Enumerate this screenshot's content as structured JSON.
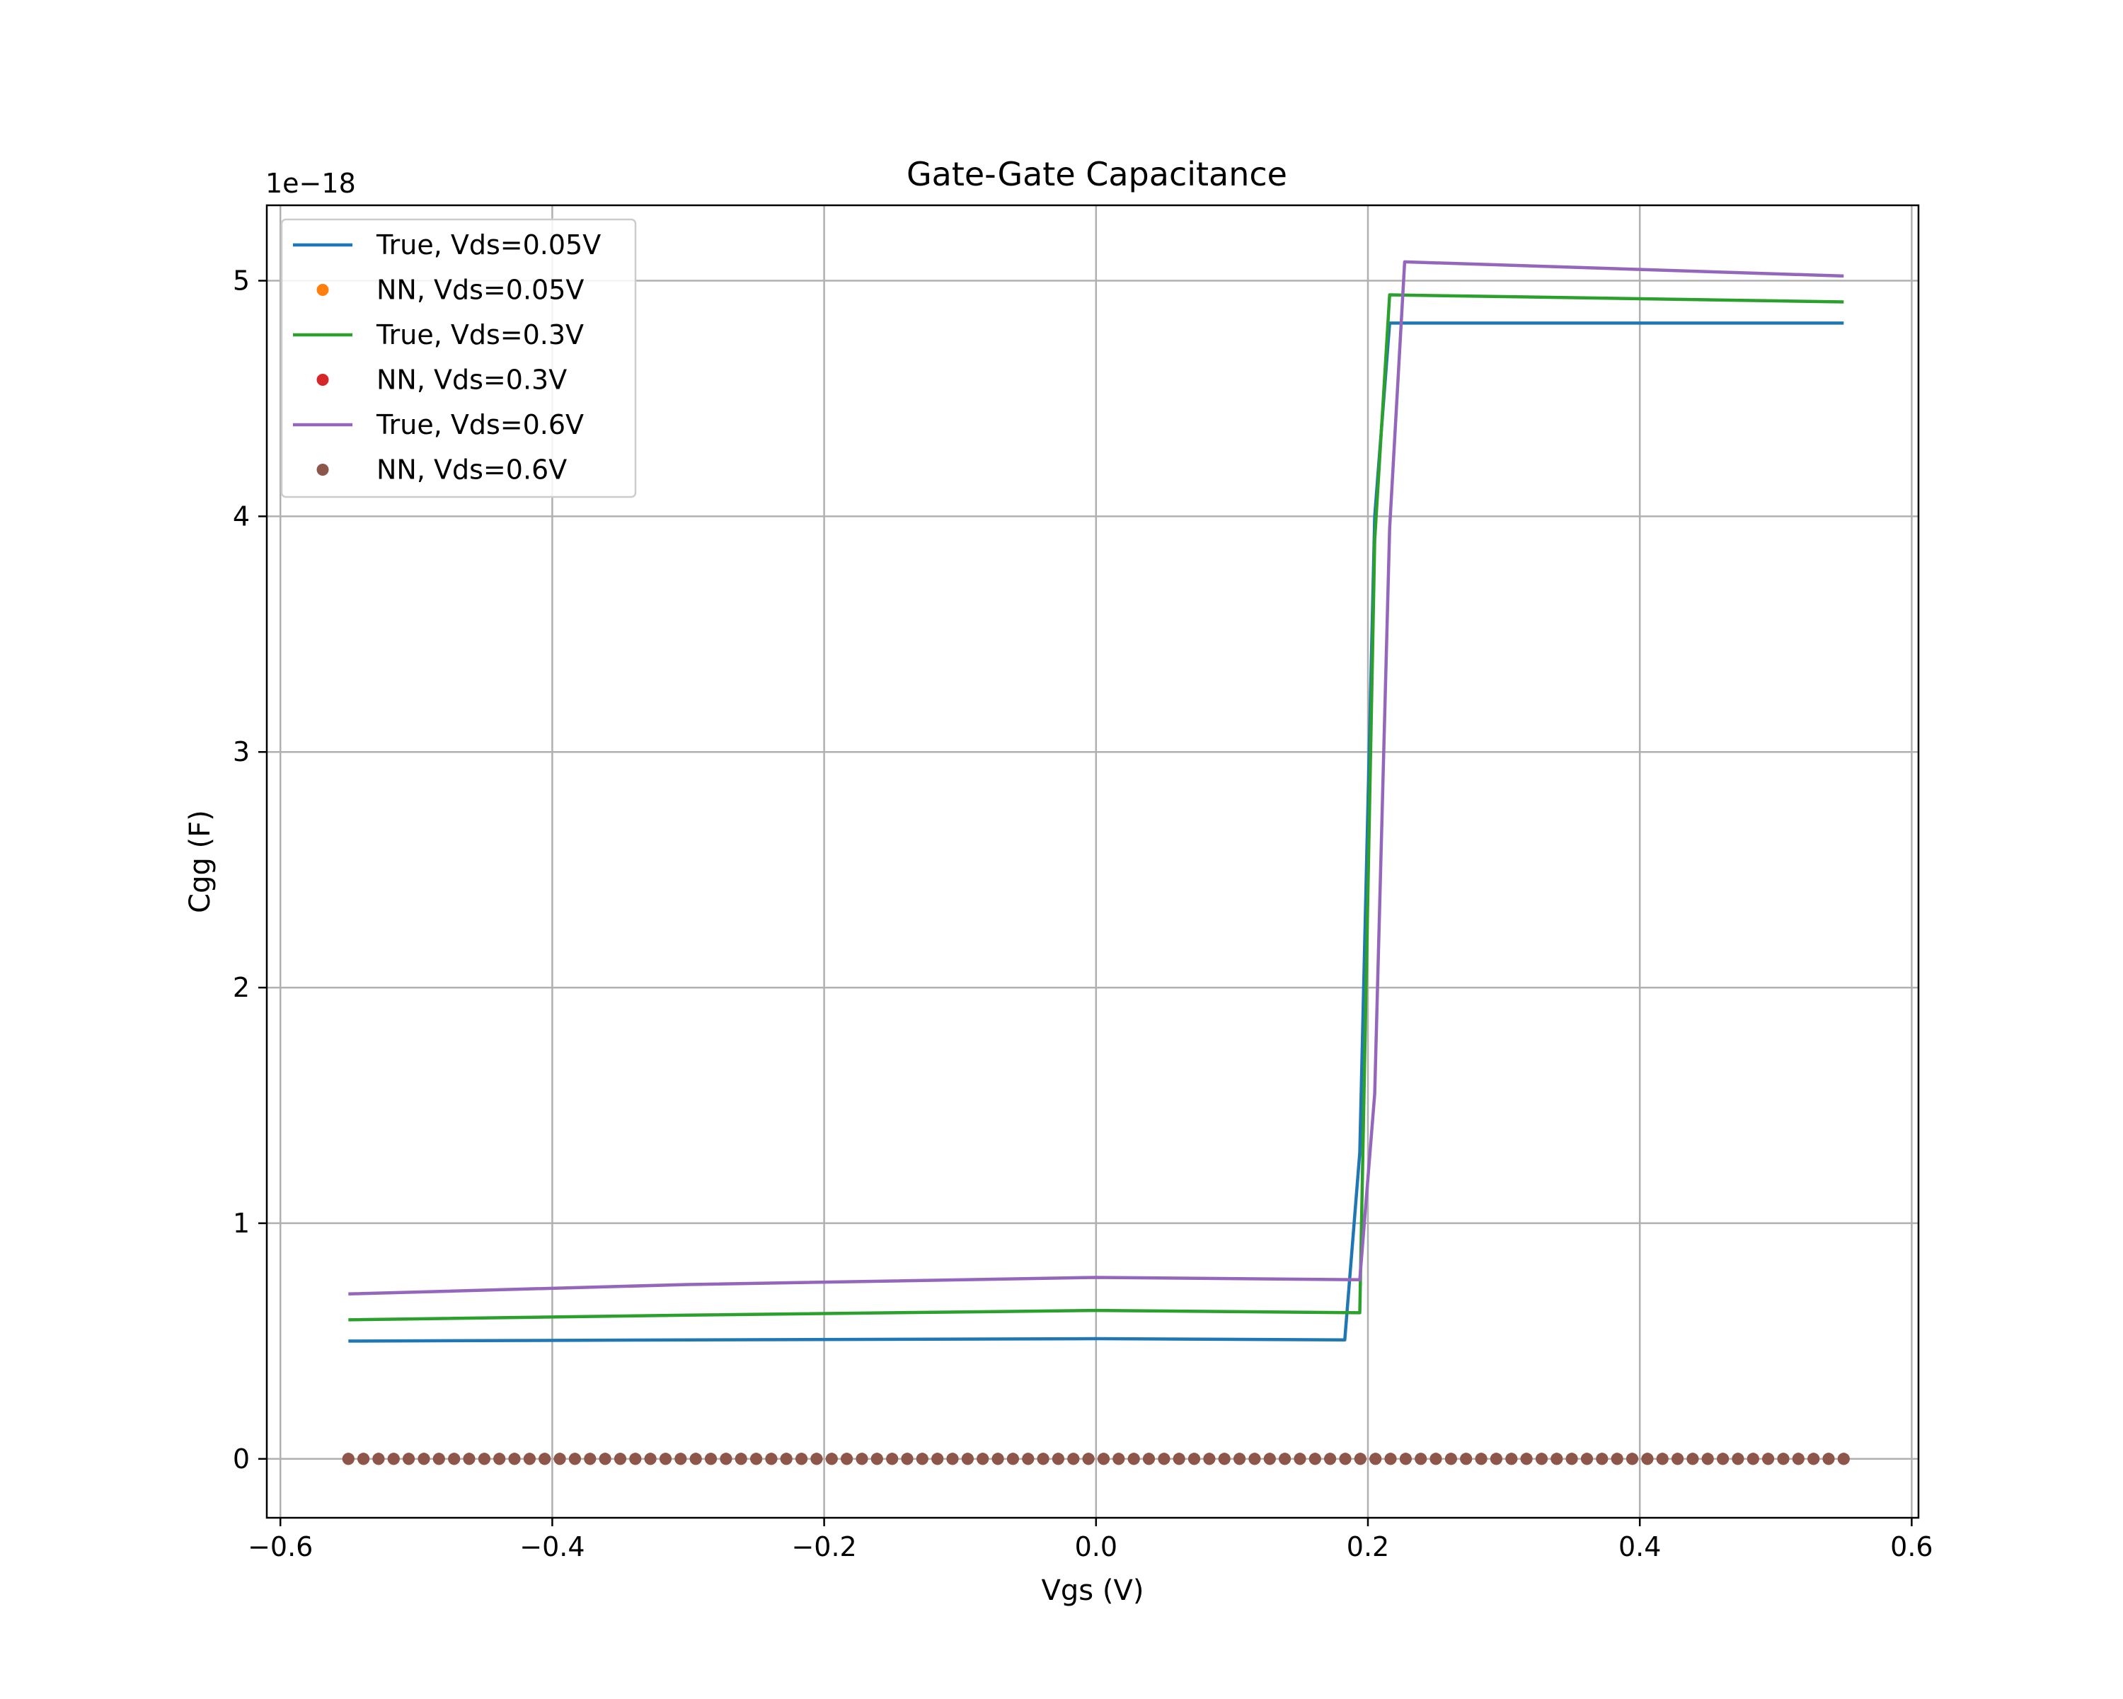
{
  "chart_data": {
    "type": "line",
    "title": "Gate-Gate Capacitance",
    "xlabel": "Vgs (V)",
    "ylabel": "Cgg (F)",
    "y_offset_label": "1e−18",
    "xlim": [
      -0.61,
      0.605
    ],
    "ylim": [
      -0.25,
      5.32
    ],
    "grid": true,
    "legend_position": "upper-left",
    "x_ticks": [
      -0.6,
      -0.4,
      -0.2,
      0.0,
      0.2,
      0.4,
      0.6
    ],
    "x_tick_labels": [
      "−0.6",
      "−0.4",
      "−0.2",
      "0.0",
      "0.2",
      "0.4",
      "0.6"
    ],
    "y_ticks": [
      0,
      1,
      2,
      3,
      4,
      5
    ],
    "y_tick_labels": [
      "0",
      "1",
      "2",
      "3",
      "4",
      "5"
    ],
    "series": [
      {
        "name": "True, Vds=0.05V",
        "style": "line",
        "color": "#1f77b4",
        "x": [
          -0.55,
          -0.3,
          0.0,
          0.183,
          0.194,
          0.205,
          0.216,
          0.55
        ],
        "y": [
          0.5,
          0.505,
          0.51,
          0.505,
          1.3,
          4.0,
          4.82,
          4.82
        ]
      },
      {
        "name": "NN, Vds=0.05V",
        "style": "markers",
        "color": "#ff7f0e",
        "x_range": [
          -0.55,
          0.55
        ],
        "count": 100,
        "value": 0.0
      },
      {
        "name": "True, Vds=0.3V",
        "style": "line",
        "color": "#2ca02c",
        "x": [
          -0.55,
          -0.3,
          0.0,
          0.194,
          0.205,
          0.216,
          0.55
        ],
        "y": [
          0.59,
          0.61,
          0.63,
          0.62,
          3.9,
          4.94,
          4.91
        ]
      },
      {
        "name": "NN, Vds=0.3V",
        "style": "markers",
        "color": "#d62728",
        "x_range": [
          -0.55,
          0.55
        ],
        "count": 100,
        "value": 0.0
      },
      {
        "name": "True, Vds=0.6V",
        "style": "line",
        "color": "#9467bd",
        "x": [
          -0.55,
          -0.3,
          0.0,
          0.194,
          0.205,
          0.216,
          0.227,
          0.55
        ],
        "y": [
          0.7,
          0.74,
          0.77,
          0.76,
          1.55,
          3.95,
          5.08,
          5.02
        ]
      },
      {
        "name": "NN, Vds=0.6V",
        "style": "markers",
        "color": "#8c564b",
        "x_range": [
          -0.55,
          0.55
        ],
        "count": 100,
        "value": 0.0
      }
    ]
  }
}
